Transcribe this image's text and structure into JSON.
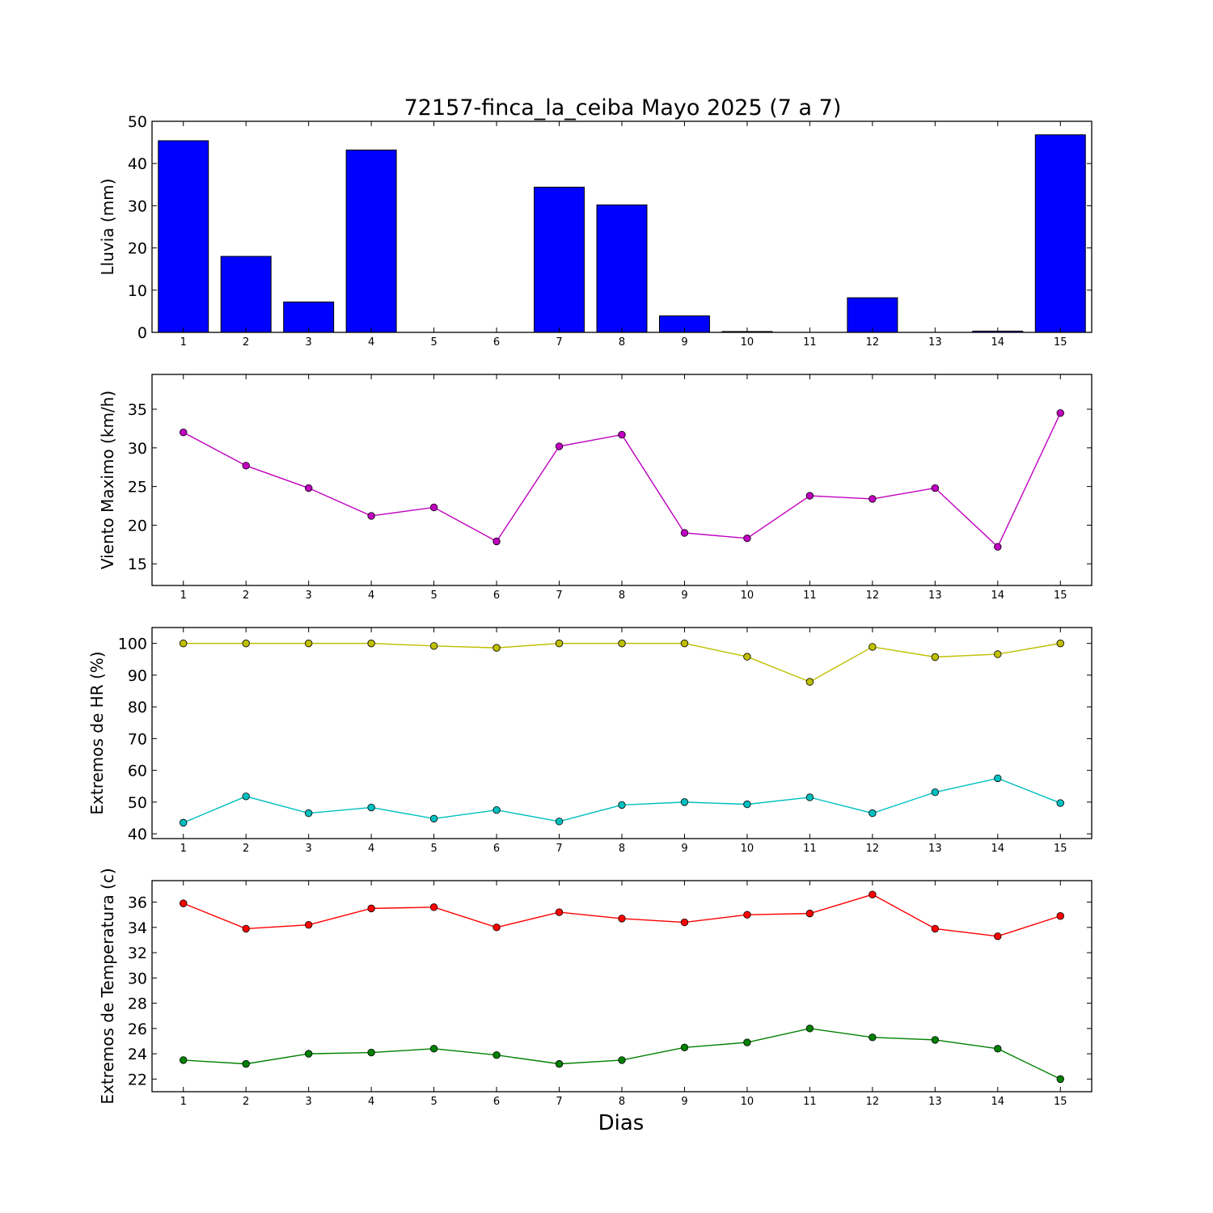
{
  "title": "72157-finca_la_ceiba Mayo 2025  (7 a 7)",
  "chart_data": [
    {
      "type": "bar",
      "ylabel": "Lluvia (mm)",
      "categories": [
        1,
        2,
        3,
        4,
        5,
        6,
        7,
        8,
        9,
        10,
        11,
        12,
        13,
        14,
        15
      ],
      "ylim": [
        0,
        50
      ],
      "yticks": [
        0,
        10,
        20,
        30,
        40,
        50
      ],
      "color": "#0000ff",
      "series": [
        {
          "values": [
            45.4,
            18.0,
            7.2,
            43.2,
            0,
            0,
            34.4,
            30.2,
            3.9,
            0.2,
            0,
            8.2,
            0,
            0.3,
            46.8
          ]
        }
      ]
    },
    {
      "type": "line",
      "ylabel": "Viento Maximo (km/h)",
      "x": [
        1,
        2,
        3,
        4,
        5,
        6,
        7,
        8,
        9,
        10,
        11,
        12,
        13,
        14,
        15
      ],
      "ylim": [
        12.2,
        39.5
      ],
      "yticks": [
        15,
        20,
        25,
        30,
        35
      ],
      "series": [
        {
          "color": "#bf00bf",
          "values": [
            32.0,
            27.7,
            24.8,
            21.2,
            22.3,
            17.9,
            30.2,
            31.7,
            19.0,
            18.3,
            23.8,
            23.4,
            24.8,
            17.2,
            34.5
          ]
        }
      ]
    },
    {
      "type": "line",
      "ylabel": "Extremos de HR (%)",
      "x": [
        1,
        2,
        3,
        4,
        5,
        6,
        7,
        8,
        9,
        10,
        11,
        12,
        13,
        14,
        15
      ],
      "ylim": [
        38.5,
        105
      ],
      "yticks": [
        40,
        50,
        60,
        70,
        80,
        90,
        100
      ],
      "series": [
        {
          "color": "#bfbf00",
          "values": [
            100,
            100,
            100,
            100,
            99.2,
            98.6,
            100,
            100,
            100,
            95.8,
            87.9,
            98.9,
            95.7,
            96.6,
            100
          ]
        },
        {
          "color": "#00bfbf",
          "values": [
            43.5,
            51.8,
            46.5,
            48.3,
            44.8,
            47.5,
            43.9,
            49.1,
            50.0,
            49.3,
            51.5,
            46.5,
            53.1,
            57.5,
            49.7
          ]
        }
      ]
    },
    {
      "type": "line",
      "ylabel": "Extremos de Temperatura (c)",
      "xlabel": "Dias",
      "x": [
        1,
        2,
        3,
        4,
        5,
        6,
        7,
        8,
        9,
        10,
        11,
        12,
        13,
        14,
        15
      ],
      "ylim": [
        21.0,
        37.7
      ],
      "yticks": [
        22,
        24,
        26,
        28,
        30,
        32,
        34,
        36
      ],
      "series": [
        {
          "color": "#ff0000",
          "values": [
            35.9,
            33.9,
            34.2,
            35.5,
            35.6,
            34.0,
            35.2,
            34.7,
            34.4,
            35.0,
            35.1,
            36.6,
            33.9,
            33.3,
            34.9
          ]
        },
        {
          "color": "#008000",
          "values": [
            23.5,
            23.2,
            24.0,
            24.1,
            24.4,
            23.9,
            23.2,
            23.5,
            24.5,
            24.9,
            26.0,
            25.3,
            25.1,
            24.4,
            22.0
          ]
        }
      ]
    }
  ]
}
